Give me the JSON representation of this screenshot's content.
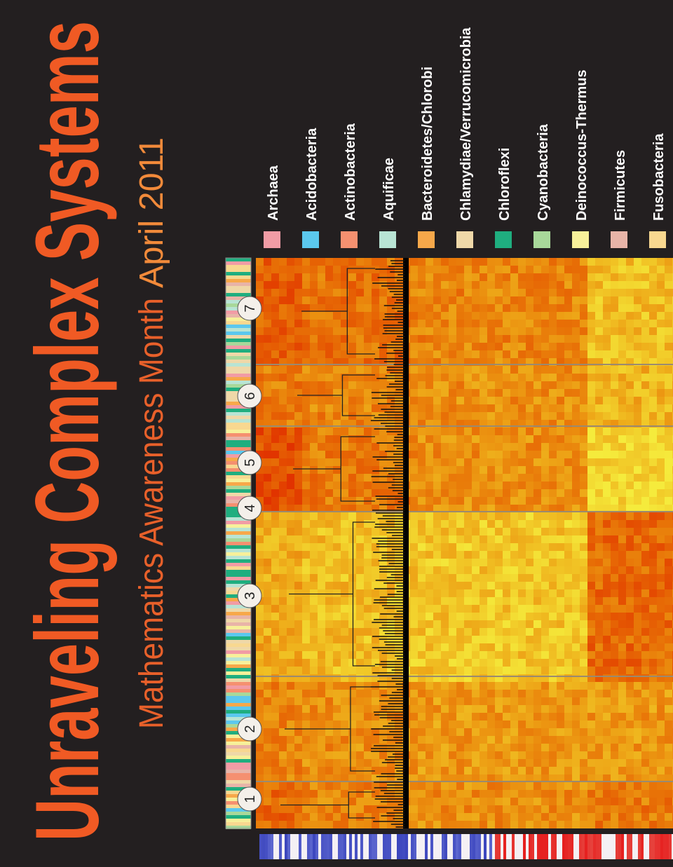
{
  "title": "Unraveling Complex Systems",
  "subtitle": {
    "main": "Mathematics Awareness Month",
    "date": "April 2011"
  },
  "legend": [
    {
      "label": "Archaea",
      "color": "#f19ca5"
    },
    {
      "label": "Acidobacteria",
      "color": "#5bc8ee"
    },
    {
      "label": "Actinobacteria",
      "color": "#f59070"
    },
    {
      "label": "Aquificae",
      "color": "#b8e4d4"
    },
    {
      "label": "Bacteroidetes/Chlorobi",
      "color": "#f7a84a"
    },
    {
      "label": "Chlamydiae/Verrucomicrobia",
      "color": "#efd8a8"
    },
    {
      "label": "Chloroflexi",
      "color": "#1fae7f"
    },
    {
      "label": "Cyanobacteria",
      "color": "#a8d89a"
    },
    {
      "label": "Deinococcus-Thermus",
      "color": "#f7f09a"
    },
    {
      "label": "Firmicutes",
      "color": "#e8b4a8"
    },
    {
      "label": "Fusobacteria",
      "color": "#f8d890"
    }
  ],
  "clusters": [
    "1",
    "2",
    "3",
    "4",
    "5",
    "6",
    "7"
  ]
}
